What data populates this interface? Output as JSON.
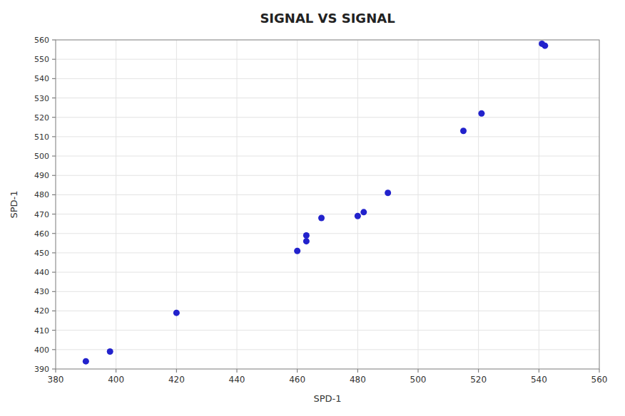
{
  "chart_data": {
    "type": "scatter",
    "title": "SIGNAL VS SIGNAL",
    "x_label": "SPD-1",
    "y_label": "SPD-1",
    "x": [
      390,
      398,
      420,
      460,
      463,
      463,
      468,
      480,
      482,
      490,
      515,
      521,
      541,
      542
    ],
    "values": [
      394,
      399,
      419,
      451,
      456,
      459,
      468,
      469,
      471,
      481,
      513,
      522,
      558,
      557
    ],
    "color": "#2222cc",
    "marker": "circle",
    "xlim": [
      380,
      560
    ],
    "ylim": [
      390,
      560
    ],
    "xticks": [
      380,
      400,
      420,
      440,
      460,
      480,
      500,
      520,
      540,
      560
    ],
    "yticks": [
      390,
      400,
      410,
      420,
      430,
      440,
      450,
      460,
      470,
      480,
      490,
      500,
      510,
      520,
      530,
      540,
      550,
      560
    ],
    "grid": true
  }
}
